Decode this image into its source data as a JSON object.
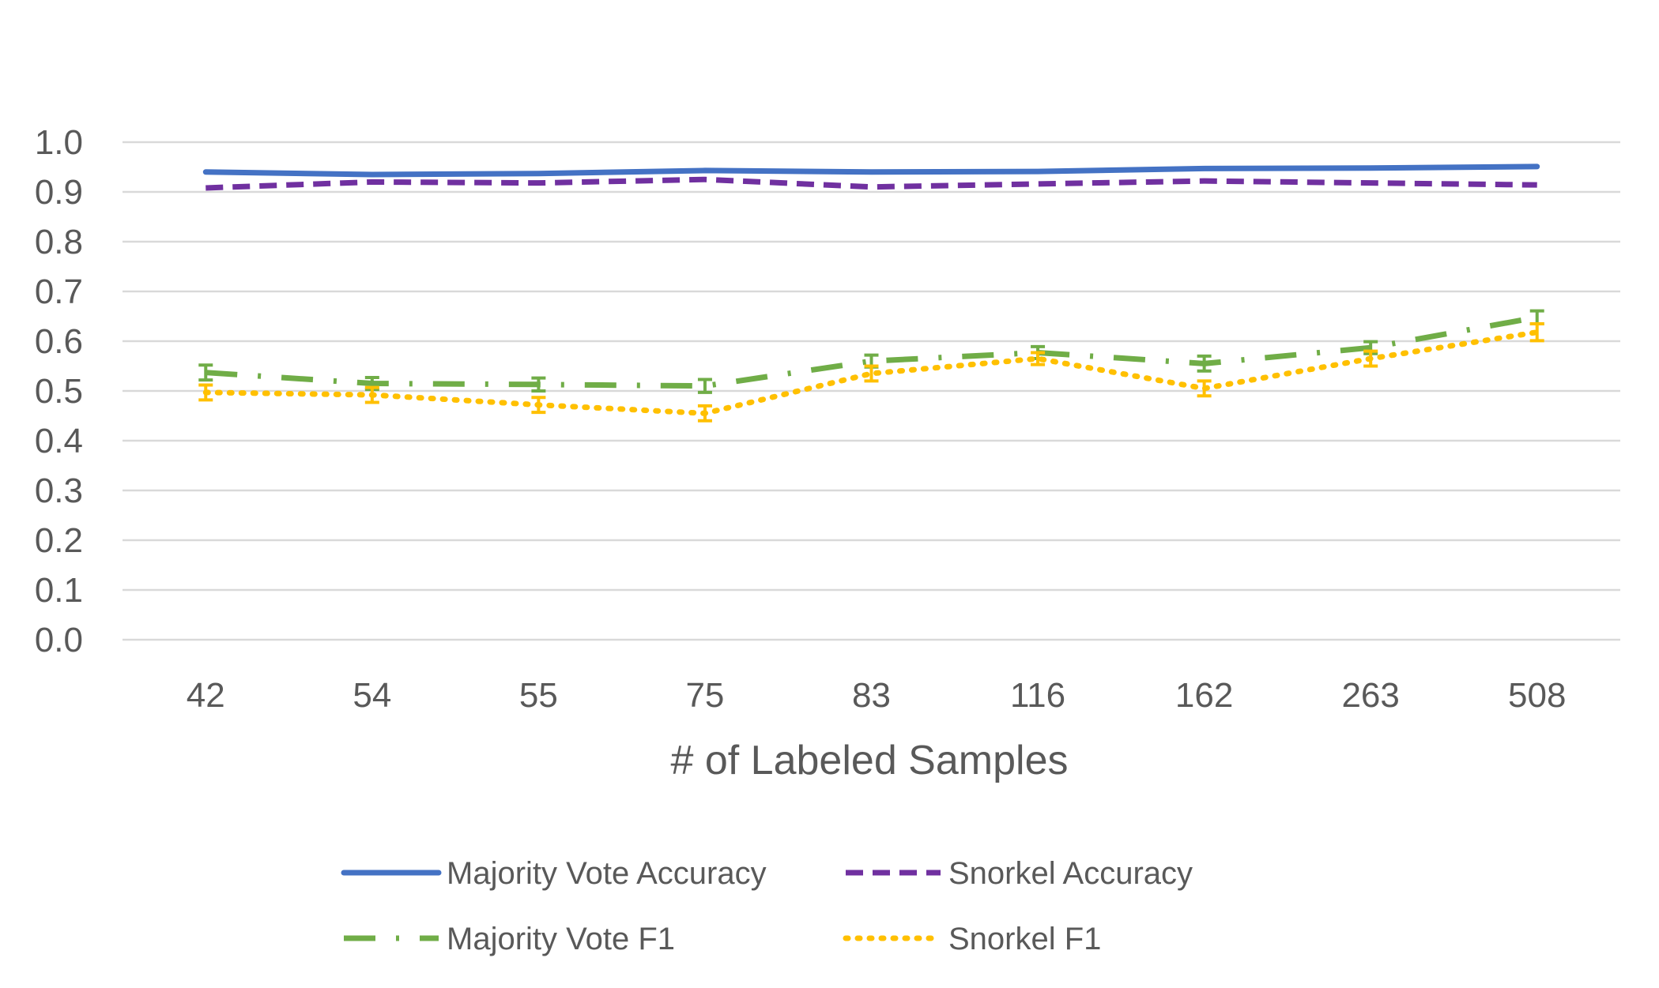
{
  "chart_data": {
    "type": "line",
    "title": "",
    "xlabel": "# of Labeled Samples",
    "ylabel": "",
    "ylim": [
      0.0,
      1.0
    ],
    "ytick_step": 0.1,
    "ytick_labels": [
      "0.0",
      "0.1",
      "0.2",
      "0.3",
      "0.4",
      "0.5",
      "0.6",
      "0.7",
      "0.8",
      "0.9",
      "1.0"
    ],
    "grid": true,
    "legend_position": "bottom",
    "categories": [
      "42",
      "54",
      "55",
      "75",
      "83",
      "116",
      "162",
      "263",
      "508"
    ],
    "series": [
      {
        "name": "Majority Vote Accuracy",
        "color": "#4472C4",
        "style": "solid",
        "values": [
          0.94,
          0.935,
          0.937,
          0.943,
          0.94,
          0.941,
          0.947,
          0.948,
          0.951
        ]
      },
      {
        "name": "Snorkel Accuracy",
        "color": "#7030A0",
        "style": "dashed",
        "values": [
          0.908,
          0.92,
          0.918,
          0.925,
          0.91,
          0.916,
          0.922,
          0.918,
          0.914
        ]
      },
      {
        "name": "Majority Vote F1",
        "color": "#70AD47",
        "style": "dashdot",
        "values": [
          0.537,
          0.515,
          0.513,
          0.51,
          0.56,
          0.577,
          0.555,
          0.587,
          0.648
        ],
        "error": [
          0.015,
          0.012,
          0.013,
          0.013,
          0.012,
          0.012,
          0.015,
          0.012,
          0.013
        ]
      },
      {
        "name": "Snorkel F1",
        "color": "#FFC000",
        "style": "dotted",
        "values": [
          0.497,
          0.492,
          0.472,
          0.455,
          0.535,
          0.565,
          0.505,
          0.565,
          0.618
        ],
        "error": [
          0.015,
          0.015,
          0.015,
          0.015,
          0.015,
          0.012,
          0.015,
          0.015,
          0.017
        ]
      }
    ]
  }
}
